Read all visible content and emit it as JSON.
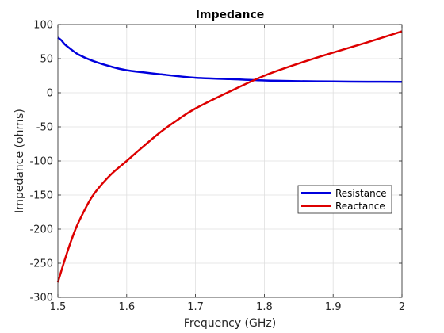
{
  "chart_data": {
    "type": "line",
    "title": "Impedance",
    "xlabel": "Frequency (GHz)",
    "ylabel": "Impedance (ohms)",
    "xlim": [
      1.5,
      2.0
    ],
    "ylim": [
      -300,
      100
    ],
    "xticks": [
      1.5,
      1.6,
      1.7,
      1.8,
      1.9,
      2.0
    ],
    "xtick_labels": [
      "1.5",
      "1.6",
      "1.7",
      "1.8",
      "1.9",
      "2"
    ],
    "yticks": [
      100,
      50,
      0,
      -50,
      -100,
      -150,
      -200,
      -250,
      -300
    ],
    "ytick_labels": [
      "100",
      "50",
      "0",
      "-50",
      "-100",
      "-150",
      "-200",
      "-250",
      "-300"
    ],
    "grid": true,
    "legend_position": "right",
    "series": [
      {
        "name": "Resistance",
        "color": "#0000dd",
        "x": [
          1.5,
          1.505,
          1.51,
          1.52,
          1.53,
          1.55,
          1.575,
          1.6,
          1.65,
          1.7,
          1.75,
          1.8,
          1.85,
          1.9,
          1.95,
          2.0
        ],
        "y": [
          81,
          77,
          71,
          63,
          56,
          47,
          39,
          33,
          27,
          22,
          20,
          18,
          17,
          16.5,
          16.2,
          16
        ]
      },
      {
        "name": "Reactance",
        "color": "#dd0000",
        "x": [
          1.5,
          1.51,
          1.52,
          1.53,
          1.55,
          1.575,
          1.6,
          1.625,
          1.65,
          1.675,
          1.7,
          1.75,
          1.8,
          1.85,
          1.9,
          1.95,
          2.0
        ],
        "y": [
          -278,
          -245,
          -215,
          -190,
          -152,
          -122,
          -100,
          -78,
          -57,
          -39,
          -23,
          2,
          25,
          43,
          59,
          74,
          90
        ]
      }
    ]
  }
}
